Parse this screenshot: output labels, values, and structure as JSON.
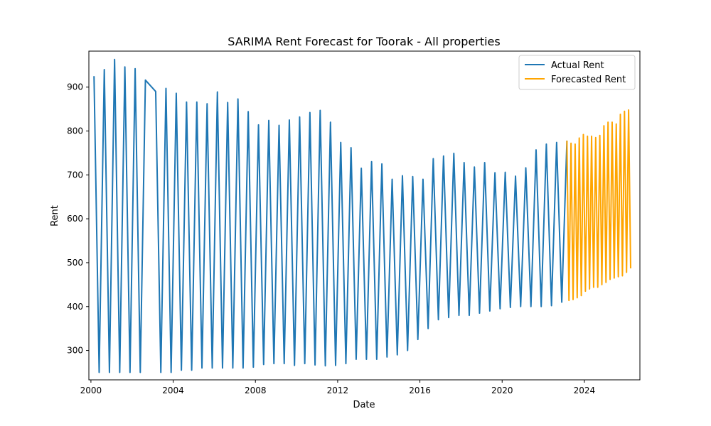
{
  "chart_data": {
    "type": "line",
    "title": "SARIMA Rent Forecast for Toorak - All properties",
    "xlabel": "Date",
    "ylabel": "Rent",
    "xlim": [
      1999.9,
      2026.7
    ],
    "ylim": [
      233,
      982
    ],
    "xticks": [
      2000,
      2004,
      2008,
      2012,
      2016,
      2020,
      2024
    ],
    "yticks": [
      300,
      400,
      500,
      600,
      700,
      800,
      900
    ],
    "grid": false,
    "legend_position": "top-right",
    "series": [
      {
        "name": "Actual Rent",
        "color": "#1f77b4",
        "x": [
          2000.15,
          2000.4,
          2000.65,
          2000.9,
          2001.15,
          2001.4,
          2001.65,
          2001.9,
          2002.15,
          2002.4,
          2002.65,
          2003.15,
          2003.4,
          2003.65,
          2003.9,
          2004.15,
          2004.4,
          2004.65,
          2004.9,
          2005.15,
          2005.4,
          2005.65,
          2005.9,
          2006.15,
          2006.4,
          2006.65,
          2006.9,
          2007.15,
          2007.4,
          2007.65,
          2007.9,
          2008.15,
          2008.4,
          2008.65,
          2008.9,
          2009.15,
          2009.4,
          2009.65,
          2009.9,
          2010.15,
          2010.4,
          2010.65,
          2010.9,
          2011.15,
          2011.4,
          2011.65,
          2011.9,
          2012.15,
          2012.4,
          2012.65,
          2012.9,
          2013.15,
          2013.4,
          2013.65,
          2013.9,
          2014.15,
          2014.4,
          2014.65,
          2014.9,
          2015.15,
          2015.4,
          2015.65,
          2015.9,
          2016.15,
          2016.4,
          2016.65,
          2016.9,
          2017.15,
          2017.4,
          2017.65,
          2017.9,
          2018.15,
          2018.4,
          2018.65,
          2018.9,
          2019.15,
          2019.4,
          2019.65,
          2019.9,
          2020.15,
          2020.4,
          2020.65,
          2020.9,
          2021.15,
          2021.4,
          2021.65,
          2021.9,
          2022.15,
          2022.4,
          2022.65,
          2022.9,
          2023.15
        ],
        "y": [
          925,
          250,
          940,
          250,
          963,
          250,
          946,
          250,
          942,
          250,
          916,
          890,
          250,
          897,
          250,
          886,
          255,
          866,
          255,
          866,
          260,
          862,
          260,
          889,
          260,
          865,
          260,
          873,
          260,
          844,
          262,
          814,
          268,
          824,
          270,
          813,
          270,
          825,
          266,
          832,
          270,
          842,
          267,
          847,
          265,
          820,
          266,
          774,
          270,
          762,
          280,
          715,
          280,
          730,
          280,
          725,
          285,
          690,
          290,
          698,
          300,
          696,
          325,
          690,
          350,
          737,
          370,
          743,
          375,
          749,
          380,
          728,
          380,
          718,
          385,
          728,
          390,
          705,
          395,
          706,
          398,
          697,
          400,
          716,
          400,
          757,
          400,
          770,
          402,
          774,
          410,
          778
        ]
      },
      {
        "name": "Forecasted Rent",
        "color": "#ffa500",
        "x": [
          2023.15,
          2023.25,
          2023.35,
          2023.45,
          2023.55,
          2023.65,
          2023.75,
          2023.85,
          2023.95,
          2024.05,
          2024.15,
          2024.25,
          2024.35,
          2024.45,
          2024.55,
          2024.65,
          2024.75,
          2024.85,
          2024.95,
          2025.05,
          2025.15,
          2025.25,
          2025.35,
          2025.45,
          2025.55,
          2025.65,
          2025.75,
          2025.85,
          2025.95,
          2026.05,
          2026.15,
          2026.25
        ],
        "y": [
          778,
          414,
          772,
          416,
          770,
          420,
          784,
          425,
          792,
          435,
          788,
          440,
          788,
          444,
          785,
          444,
          790,
          450,
          812,
          455,
          820,
          462,
          820,
          465,
          816,
          468,
          838,
          470,
          845,
          478,
          848,
          487
        ]
      }
    ]
  }
}
